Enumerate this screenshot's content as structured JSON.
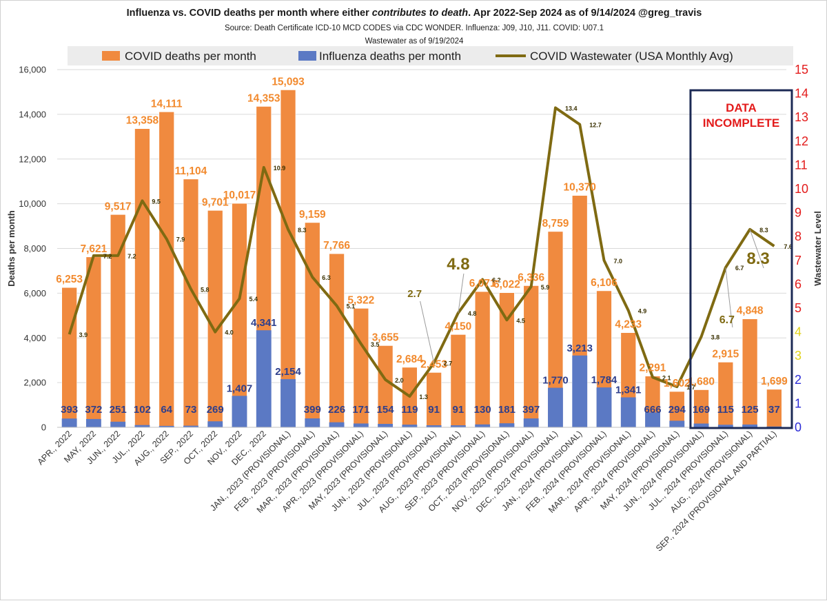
{
  "header": {
    "title_pre": "Influenza vs. COVID deaths per month where either ",
    "title_em": "contributes to death",
    "title_post": ".  Apr 2022-Sep 2024 as of 9/14/2024 @greg_travis",
    "source": "Source: Death Certificate ICD-10 MCD CODES via CDC WONDER.  Influenza: J09, J10, J11.  COVID: U07.1",
    "wastewater_note": "Wastewater as of 9/19/2024"
  },
  "colors": {
    "covid": "#f08a3f",
    "flu": "#5b79c4",
    "wastewater": "#7f6a12",
    "covid_label": "#f28a2e",
    "flu_label": "#2e3f8c",
    "axis_right": "#e31b1b",
    "incomplete_box": "#1c2a55",
    "incomplete_text": "#e31b1b",
    "callout": "#7f6a12"
  },
  "incomplete_note": {
    "line1": "DATA",
    "line2": "INCOMPLETE"
  },
  "chart_data": {
    "type": "bar",
    "stacked": true,
    "categories": [
      "APR., 2022",
      "MAY, 2022",
      "JUN., 2022",
      "JUL., 2022",
      "AUG., 2022",
      "SEP., 2022",
      "OCT., 2022",
      "NOV., 2022",
      "DEC., 2022",
      "JAN., 2023 (PROVISIONAL)",
      "FEB., 2023 (PROVISIONAL)",
      "MAR., 2023 (PROVISIONAL)",
      "APR., 2023 (PROVISIONAL)",
      "MAY, 2023 (PROVISIONAL)",
      "JUN., 2023 (PROVISIONAL)",
      "JUL., 2023 (PROVISIONAL)",
      "AUG., 2023 (PROVISIONAL)",
      "SEP., 2023 (PROVISIONAL)",
      "OCT., 2023 (PROVISIONAL)",
      "NOV., 2023 (PROVISIONAL)",
      "DEC., 2023 (PROVISIONAL)",
      "JAN., 2024 (PROVISIONAL)",
      "FEB., 2024 (PROVISIONAL)",
      "MAR., 2024 (PROVISIONAL)",
      "APR., 2024 (PROVISIONAL)",
      "MAY, 2024 (PROVISIONAL)",
      "JUN., 2024 (PROVISIONAL)",
      "JUL., 2024 (PROVISIONAL)",
      "AUG., 2024 (PROVISIONAL)",
      "SEP., 2024 (PROVISIONAL AND PARTIAL)"
    ],
    "series": [
      {
        "name": "COVID deaths per month",
        "values": [
          6253,
          7621,
          9517,
          13358,
          14111,
          11104,
          9701,
          10017,
          14353,
          15093,
          9159,
          7766,
          5322,
          3655,
          2684,
          2453,
          4150,
          6071,
          6022,
          6336,
          8759,
          10370,
          6106,
          4233,
          2291,
          1602,
          1680,
          2915,
          4848,
          1699
        ],
        "labels": [
          "6,253",
          "7,621",
          "9,517",
          "13,358",
          "14,111",
          "11,104",
          "9,701",
          "10,017",
          "14,353",
          "15,093",
          "9,159",
          "7,766",
          "5,322",
          "3,655",
          "2,684",
          "2,453",
          "4,150",
          "6,071",
          "6,022",
          "6,336",
          "8,759",
          "10,370",
          "6,106",
          "4,233",
          "2,291",
          "1,602",
          "1,680",
          "2,915",
          "4,848",
          "1,699"
        ]
      },
      {
        "name": "Influenza deaths per month",
        "values": [
          393,
          372,
          251,
          102,
          64,
          73,
          269,
          1407,
          4341,
          2154,
          399,
          226,
          171,
          154,
          119,
          91,
          91,
          130,
          181,
          397,
          1770,
          3213,
          1784,
          1341,
          666,
          294,
          169,
          115,
          125,
          37
        ],
        "labels": [
          "393",
          "372",
          "251",
          "102",
          "64",
          "73",
          "269",
          "1,407",
          "4,341",
          "2,154",
          "399",
          "226",
          "171",
          "154",
          "119",
          "91",
          "91",
          "130",
          "181",
          "397",
          "1,770",
          "3,213",
          "1,784",
          "1,341",
          "666",
          "294",
          "169",
          "115",
          "125",
          "37"
        ]
      },
      {
        "name": "COVID Wastewater (USA Monthly Avg)",
        "axis": "right",
        "values": [
          3.9,
          7.2,
          7.2,
          9.5,
          7.9,
          5.8,
          4.0,
          5.4,
          10.9,
          8.3,
          6.3,
          5.1,
          3.5,
          2.0,
          1.3,
          2.7,
          4.8,
          6.2,
          4.5,
          5.9,
          13.4,
          12.7,
          7.0,
          4.9,
          2.1,
          1.7,
          3.8,
          6.7,
          8.3,
          7.6
        ],
        "labels": [
          "3.9",
          "7.2",
          "7.2",
          "9.5",
          "7.9",
          "5.8",
          "4.0",
          "5.4",
          "10.9",
          "8.3",
          "6.3",
          "5.1",
          "3.5",
          "2.0",
          "1.3",
          "2.7",
          "4.8",
          "6.2",
          "4.5",
          "5.9",
          "13.4",
          "12.7",
          "7.0",
          "4.9",
          "2.1",
          "1.7",
          "3.8",
          "6.7",
          "8.3",
          "7.6"
        ]
      }
    ],
    "callouts": [
      {
        "text": "2.7",
        "index": 15
      },
      {
        "text": "4.8",
        "index": 16
      },
      {
        "text": "6.7",
        "index": 27
      },
      {
        "text": "8.3",
        "index": 28
      }
    ],
    "y_left": {
      "label": "Deaths per month",
      "ylim": [
        0,
        16000
      ],
      "ticks": [
        "0",
        "2,000",
        "4,000",
        "6,000",
        "8,000",
        "10,000",
        "12,000",
        "14,000",
        "16,000"
      ]
    },
    "y_right": {
      "label": "Wastewater Level",
      "ylim": [
        0,
        15
      ],
      "ticks": [
        "0",
        "1",
        "2",
        "3",
        "4",
        "5",
        "6",
        "7",
        "8",
        "9",
        "10",
        "11",
        "12",
        "13",
        "14",
        "15"
      ]
    },
    "grid": true,
    "legend": "top"
  }
}
